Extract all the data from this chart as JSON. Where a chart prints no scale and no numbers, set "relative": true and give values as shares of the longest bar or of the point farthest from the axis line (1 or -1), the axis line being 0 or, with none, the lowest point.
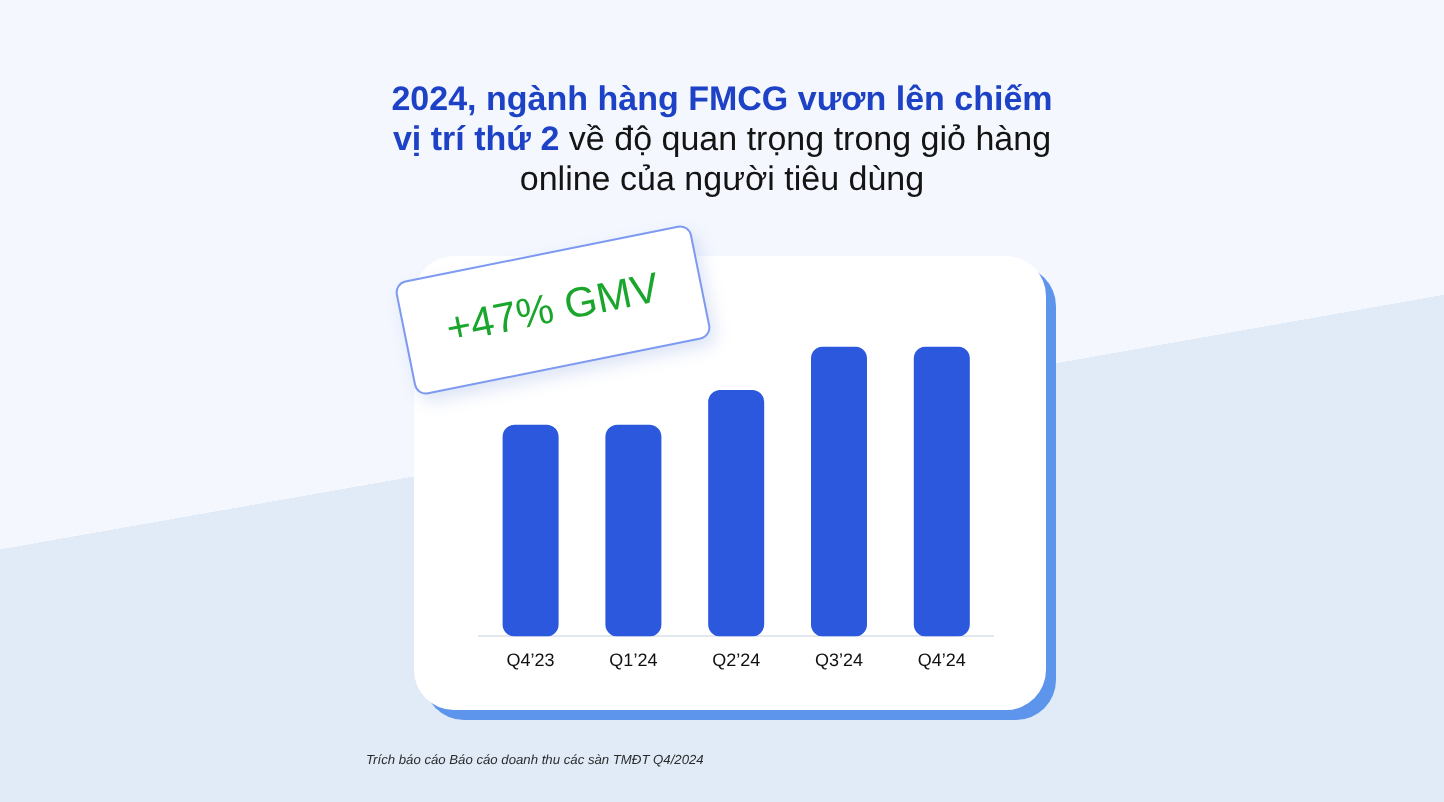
{
  "chart_data": {
    "type": "bar",
    "title": "2024, ngành hàng FMCG vươn lên chiếm vị trí thứ 2 về độ quan trọng trong giỏ hàng online của người tiêu dùng",
    "categories": [
      "Q4’23",
      "Q1’24",
      "Q2’24",
      "Q3’24",
      "Q4’24"
    ],
    "values": [
      0.73,
      0.73,
      0.85,
      1,
      1
    ],
    "color": "#2b58dc",
    "relative": true,
    "annotations": [
      "+47% GMV",
      "Trích báo cáo Báo cáo doanh thu các sàn TMĐT Q4/2024"
    ]
  }
}
